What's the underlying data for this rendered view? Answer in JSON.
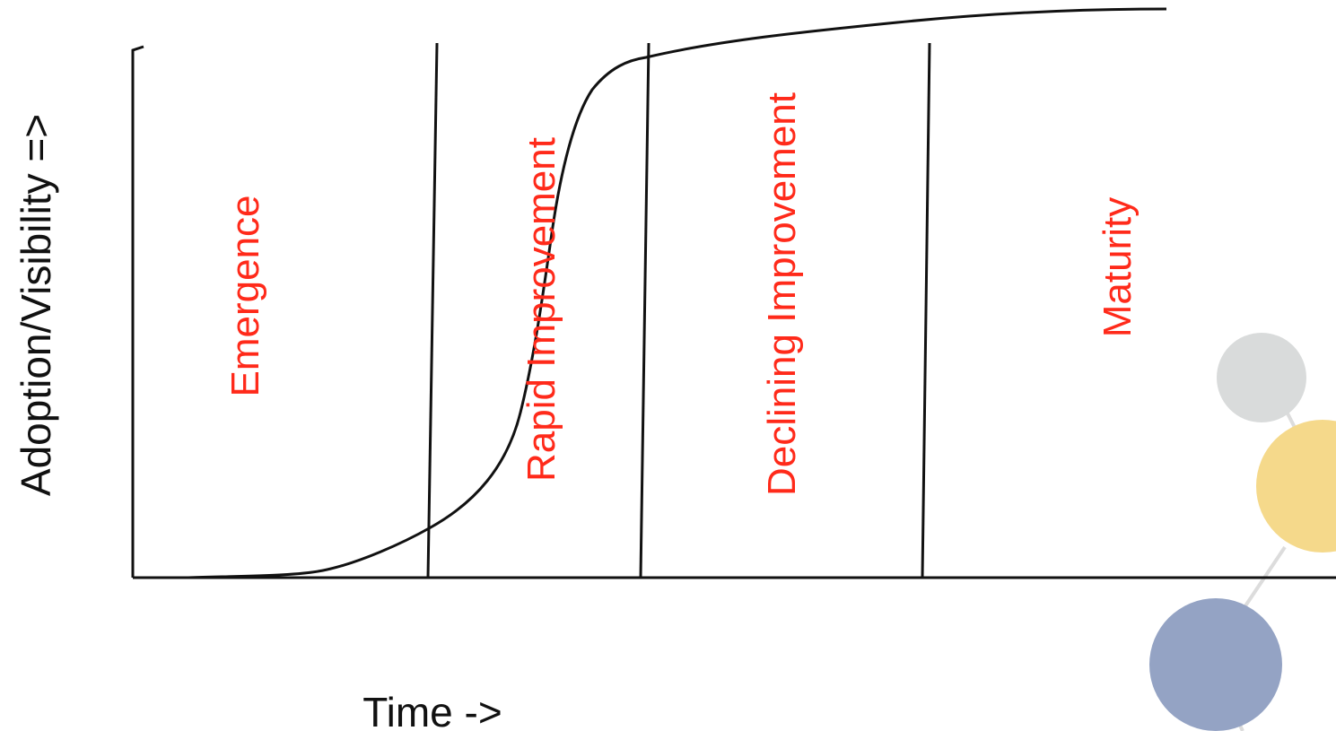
{
  "diagram": {
    "y_axis_label": "Adoption/Visibility =>",
    "x_axis_label": "Time ->",
    "phases": [
      {
        "label": "Emergence"
      },
      {
        "label": "Rapid Improvement"
      },
      {
        "label": "Declining Improvement"
      },
      {
        "label": "Maturity"
      }
    ],
    "colors": {
      "phase_label": "#ff2a1a",
      "line": "#111111",
      "decor_gray": "#d9dbdb",
      "decor_yellow": "#f5d98b",
      "decor_blue": "#94a3c4",
      "decor_connector": "#dcdcdc"
    }
  }
}
